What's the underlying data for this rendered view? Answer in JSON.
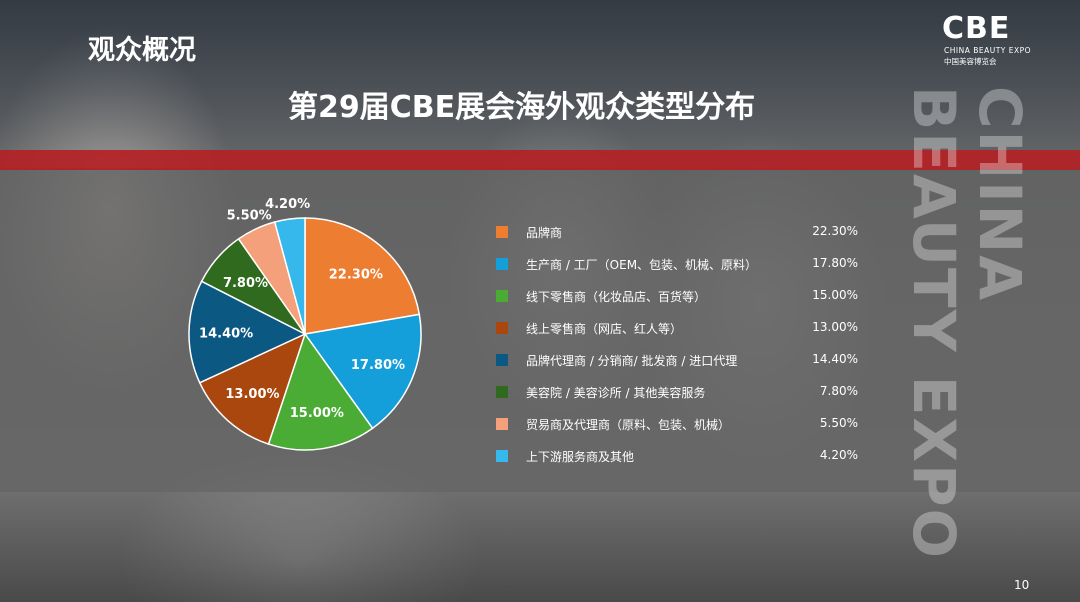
{
  "header": {
    "section_title": "观众概况",
    "main_title": "第29届CBE展会海外观众类型分布"
  },
  "logo": {
    "mark": "CBE",
    "english": "CHINA BEAUTY EXPO",
    "chinese": "中国美容博览会"
  },
  "decor": {
    "vertical_1": "CHINA",
    "vertical_2": "BEAUTY EXPO"
  },
  "chart_data": {
    "type": "pie",
    "title": "第29届CBE展会海外观众类型分布",
    "slices": [
      {
        "label": "品牌商",
        "value": 22.3,
        "display": "22.30%",
        "color": "#ed7d31"
      },
      {
        "label": "生产商 / 工厂（OEM、包装、机械、原料）",
        "value": 17.8,
        "display": "17.80%",
        "color": "#159fda"
      },
      {
        "label": "线下零售商（化妆品店、百货等）",
        "value": 15.0,
        "display": "15.00%",
        "color": "#4aab35"
      },
      {
        "label": "线上零售商（网店、红人等）",
        "value": 13.0,
        "display": "13.00%",
        "color": "#a9470f"
      },
      {
        "label": "品牌代理商 / 分销商/ 批发商 / 进口代理",
        "value": 14.4,
        "display": "14.40%",
        "color": "#0b5883"
      },
      {
        "label": "美容院 / 美容诊所 / 其他美容服务",
        "value": 7.8,
        "display": "7.80%",
        "color": "#2f6a1e"
      },
      {
        "label": "贸易商及代理商（原料、包装、机械）",
        "value": 5.5,
        "display": "5.50%",
        "color": "#f4a07a"
      },
      {
        "label": "上下游服务商及其他",
        "value": 4.2,
        "display": "4.20%",
        "color": "#36b8ec"
      }
    ],
    "legend_position": "right"
  },
  "footer": {
    "page_number": "10"
  }
}
